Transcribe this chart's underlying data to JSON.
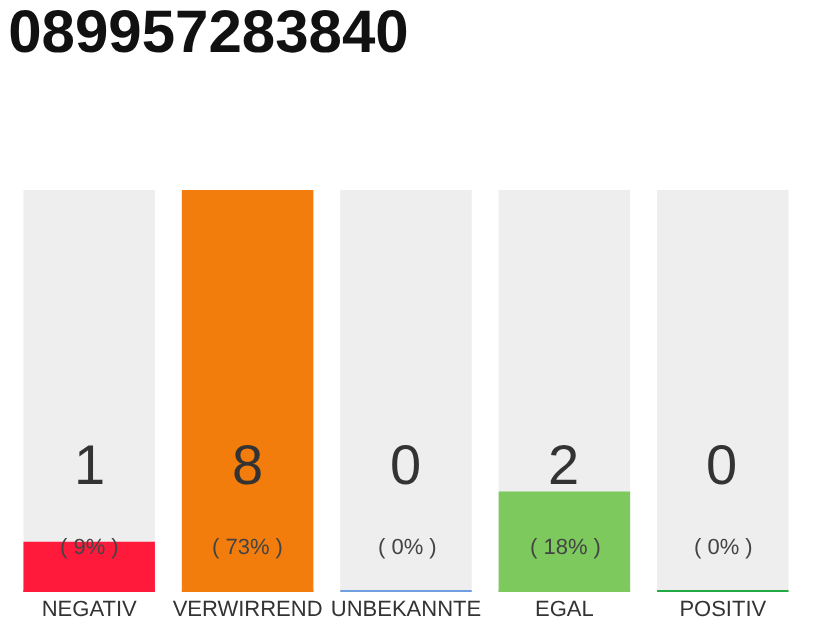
{
  "chart_data": {
    "type": "bar",
    "title": "089957283840",
    "categories": [
      "NEGATIV",
      "VERWIRREND",
      "UNBEKANNTE",
      "EGAL",
      "POSITIV"
    ],
    "values": [
      1,
      8,
      0,
      2,
      0
    ],
    "colors": [
      "#ff1a3c",
      "#f27d0c",
      "#6f9fe0",
      "#7dc95e",
      "#22aa44"
    ],
    "value_labels": [
      "1\n( 9% )",
      "8\n( 73% )",
      "0\n( 0% )",
      "2\n( 18% )",
      "0\n( 0% )"
    ],
    "bands": [
      {
        "axis": "x",
        "from": "NEGATIV",
        "to": "NEGATIV",
        "color": "#eeeeee"
      },
      {
        "axis": "x",
        "from": "UNBEKANNTE",
        "to": "UNBEKANNTE",
        "color": "#eeeeee"
      },
      {
        "axis": "x",
        "from": "EGAL",
        "to": "EGAL",
        "color": "#eeeeee"
      },
      {
        "axis": "x",
        "from": "POSITIV",
        "to": "POSITIV",
        "color": "#eeeeee"
      }
    ],
    "grid": false,
    "legend": false
  }
}
